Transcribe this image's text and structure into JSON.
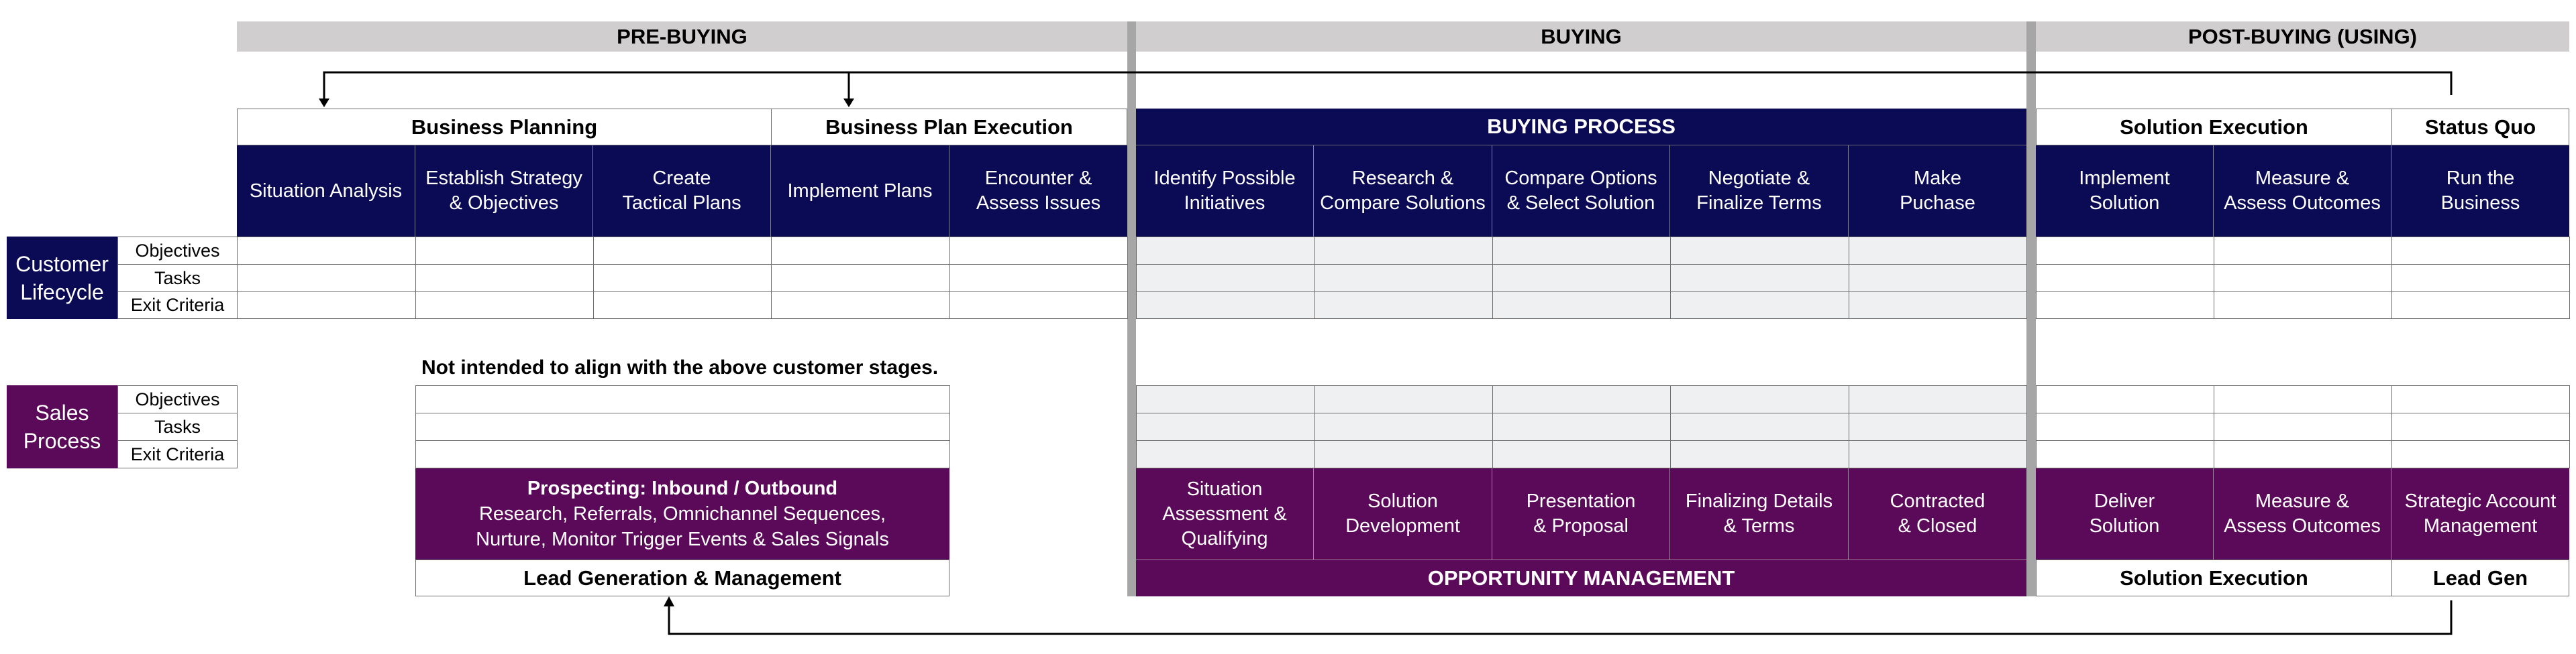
{
  "phases": {
    "pre_buying": "PRE-BUYING",
    "buying": "BUYING",
    "post_buying": "POST-BUYING (USING)"
  },
  "customer": {
    "groups": {
      "business_planning": "Business Planning",
      "business_plan_execution": "Business Plan Execution",
      "buying_process": "BUYING PROCESS",
      "solution_execution": "Solution Execution",
      "status_quo": "Status Quo"
    },
    "stages": [
      "Situation Analysis",
      "Establish Strategy\n& Objectives",
      "Create\nTactical  Plans",
      "Implement Plans",
      "Encounter &\nAssess Issues",
      "Identify Possible\nInitiatives",
      "Research &\nCompare Solutions",
      "Compare Options\n& Select Solution",
      "Negotiate &\nFinalize Terms",
      "Make\nPuchase",
      "Implement\nSolution",
      "Measure &\nAssess Outcomes",
      "Run the\nBusiness"
    ],
    "lifecycle_label": "Customer\nLifecycle",
    "row_labels": [
      "Objectives",
      "Tasks",
      "Exit Criteria"
    ]
  },
  "sales": {
    "note": "Not intended to align with the above customer stages.",
    "process_label": "Sales\nProcess",
    "row_labels": [
      "Objectives",
      "Tasks",
      "Exit Criteria"
    ],
    "prospecting": {
      "title": "Prospecting: Inbound / Outbound",
      "line1": "Research, Referrals, Omnichannel Sequences,",
      "line2": "Nurture, Monitor Trigger Events & Sales Signals"
    },
    "stages": [
      "Situation\nAssessment &\nQualifying",
      "Solution\nDevelopment",
      "Presentation\n& Proposal",
      "Finalizing Details\n& Terms",
      "Contracted\n& Closed",
      "Deliver\nSolution",
      "Measure &\nAssess Outcomes",
      "Strategic Account\nManagement"
    ],
    "footers": {
      "lead_generation": "Lead Generation & Management",
      "opportunity_management": "OPPORTUNITY MANAGEMENT",
      "solution_execution": "Solution Execution",
      "lead_gen": "Lead Gen"
    }
  },
  "colors": {
    "navy": "#0b0b55",
    "purple": "#5b0a59",
    "band_grey": "#d0cece",
    "separator": "#a6a6a6",
    "cell_grey": "#eef0f2"
  }
}
